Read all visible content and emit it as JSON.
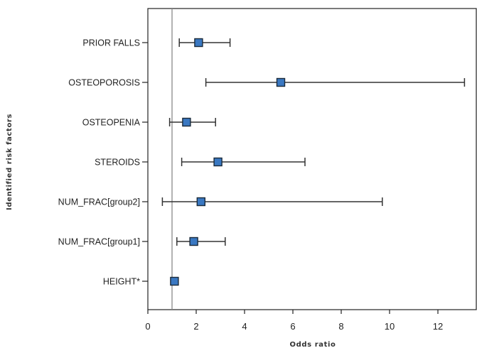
{
  "chart_data": {
    "type": "forest",
    "title": "",
    "xlabel": "Odds ratio",
    "ylabel": "Identified  risk factors",
    "xlim": [
      0,
      13.6
    ],
    "xticks": [
      0,
      2,
      4,
      6,
      8,
      10,
      12
    ],
    "reference_line": 1,
    "colors": {
      "marker": "#3a78c2",
      "marker_edge": "#1a2a3a",
      "whisker": "#333333",
      "reference": "#888888"
    },
    "rows": [
      {
        "label": "PRIOR FALLS",
        "or": 2.1,
        "lower": 1.3,
        "upper": 3.4
      },
      {
        "label": "OSTEOPOROSIS",
        "or": 5.5,
        "lower": 2.4,
        "upper": 13.1
      },
      {
        "label": "OSTEOPENIA",
        "or": 1.6,
        "lower": 0.9,
        "upper": 2.8
      },
      {
        "label": "STEROIDS",
        "or": 2.9,
        "lower": 1.4,
        "upper": 6.5
      },
      {
        "label": "NUM_FRAC[group2]",
        "or": 2.2,
        "lower": 0.6,
        "upper": 9.7
      },
      {
        "label": "NUM_FRAC[group1]",
        "or": 1.9,
        "lower": 1.2,
        "upper": 3.2
      },
      {
        "label": "HEIGHT*",
        "or": 1.1,
        "lower": 1.05,
        "upper": 1.15
      }
    ]
  }
}
